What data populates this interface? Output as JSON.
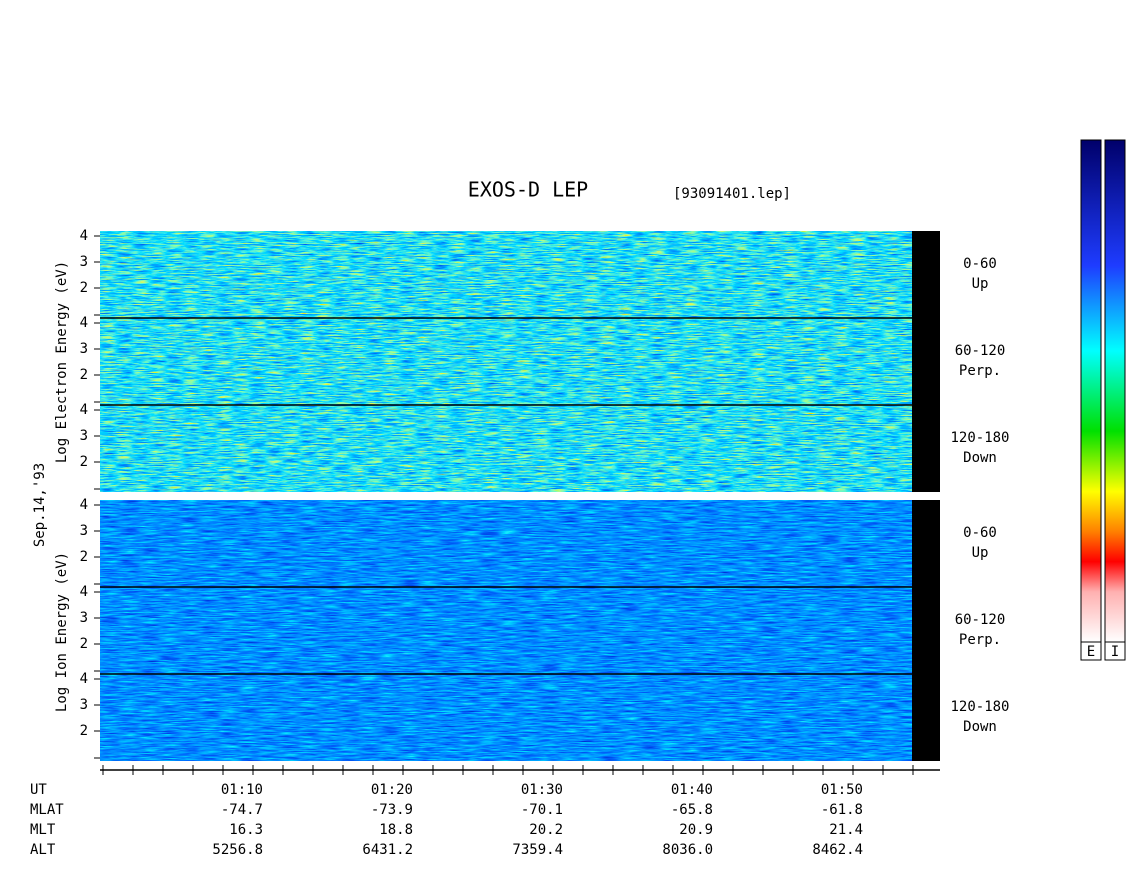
{
  "title": "EXOS-D LEP",
  "file": "[93091401.lep]",
  "electron_axis": "Log  Electron  Energy (eV)",
  "date": "Sep.14,'93",
  "ion_axis": "Log  Ion  Energy (eV)",
  "energy_ticks": [
    "4",
    "3",
    "2"
  ],
  "panels": [
    {
      "range": "0-60",
      "dir": "Up"
    },
    {
      "range": "60-120",
      "dir": "Perp."
    },
    {
      "range": "120-180",
      "dir": "Down"
    },
    {
      "range": "0-60",
      "dir": "Up"
    },
    {
      "range": "60-120",
      "dir": "Perp."
    },
    {
      "range": "120-180",
      "dir": "Down"
    }
  ],
  "colorbars": [
    "E",
    "I"
  ],
  "footer": {
    "rows": [
      {
        "name": "UT",
        "values": [
          "01:10",
          "01:20",
          "01:30",
          "01:40",
          "01:50"
        ]
      },
      {
        "name": "MLAT",
        "values": [
          "-74.7",
          "-73.9",
          "-70.1",
          "-65.8",
          "-61.8"
        ]
      },
      {
        "name": "MLT",
        "values": [
          "16.3",
          "18.8",
          "20.2",
          "20.9",
          "21.4"
        ]
      },
      {
        "name": "ALT",
        "values": [
          "5256.8",
          "6431.2",
          "7359.4",
          "8036.0",
          "8462.4"
        ]
      }
    ]
  }
}
